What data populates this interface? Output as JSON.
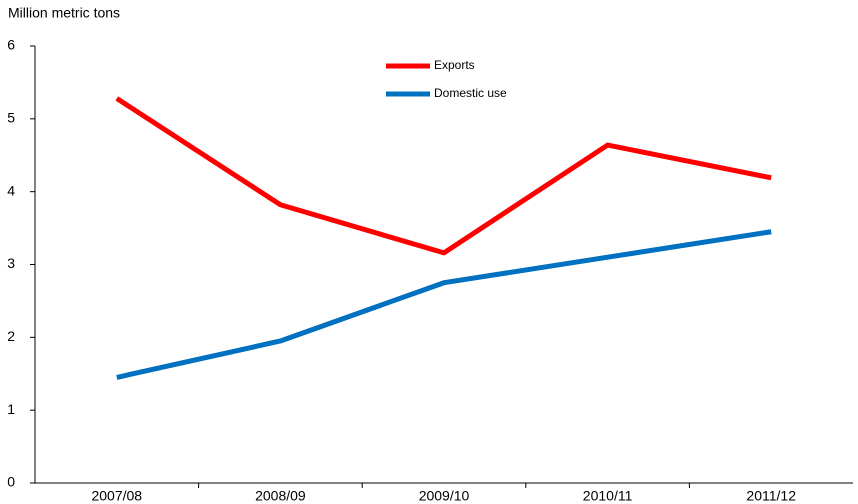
{
  "chart_data": {
    "type": "line",
    "y_axis_label": "Million metric tons",
    "categories": [
      "2007/08",
      "2008/09",
      "2009/10",
      "2010/11",
      "2011/12"
    ],
    "series": [
      {
        "name": "Exports",
        "color": "#ff0000",
        "values": [
          5.28,
          3.82,
          3.16,
          4.64,
          4.19
        ]
      },
      {
        "name": "Domestic use",
        "color": "#0070c0",
        "values": [
          1.45,
          1.95,
          2.75,
          3.1,
          3.45
        ]
      }
    ],
    "ylim": [
      0,
      6
    ],
    "yticks": [
      0,
      1,
      2,
      3,
      4,
      5,
      6
    ],
    "grid": false
  }
}
